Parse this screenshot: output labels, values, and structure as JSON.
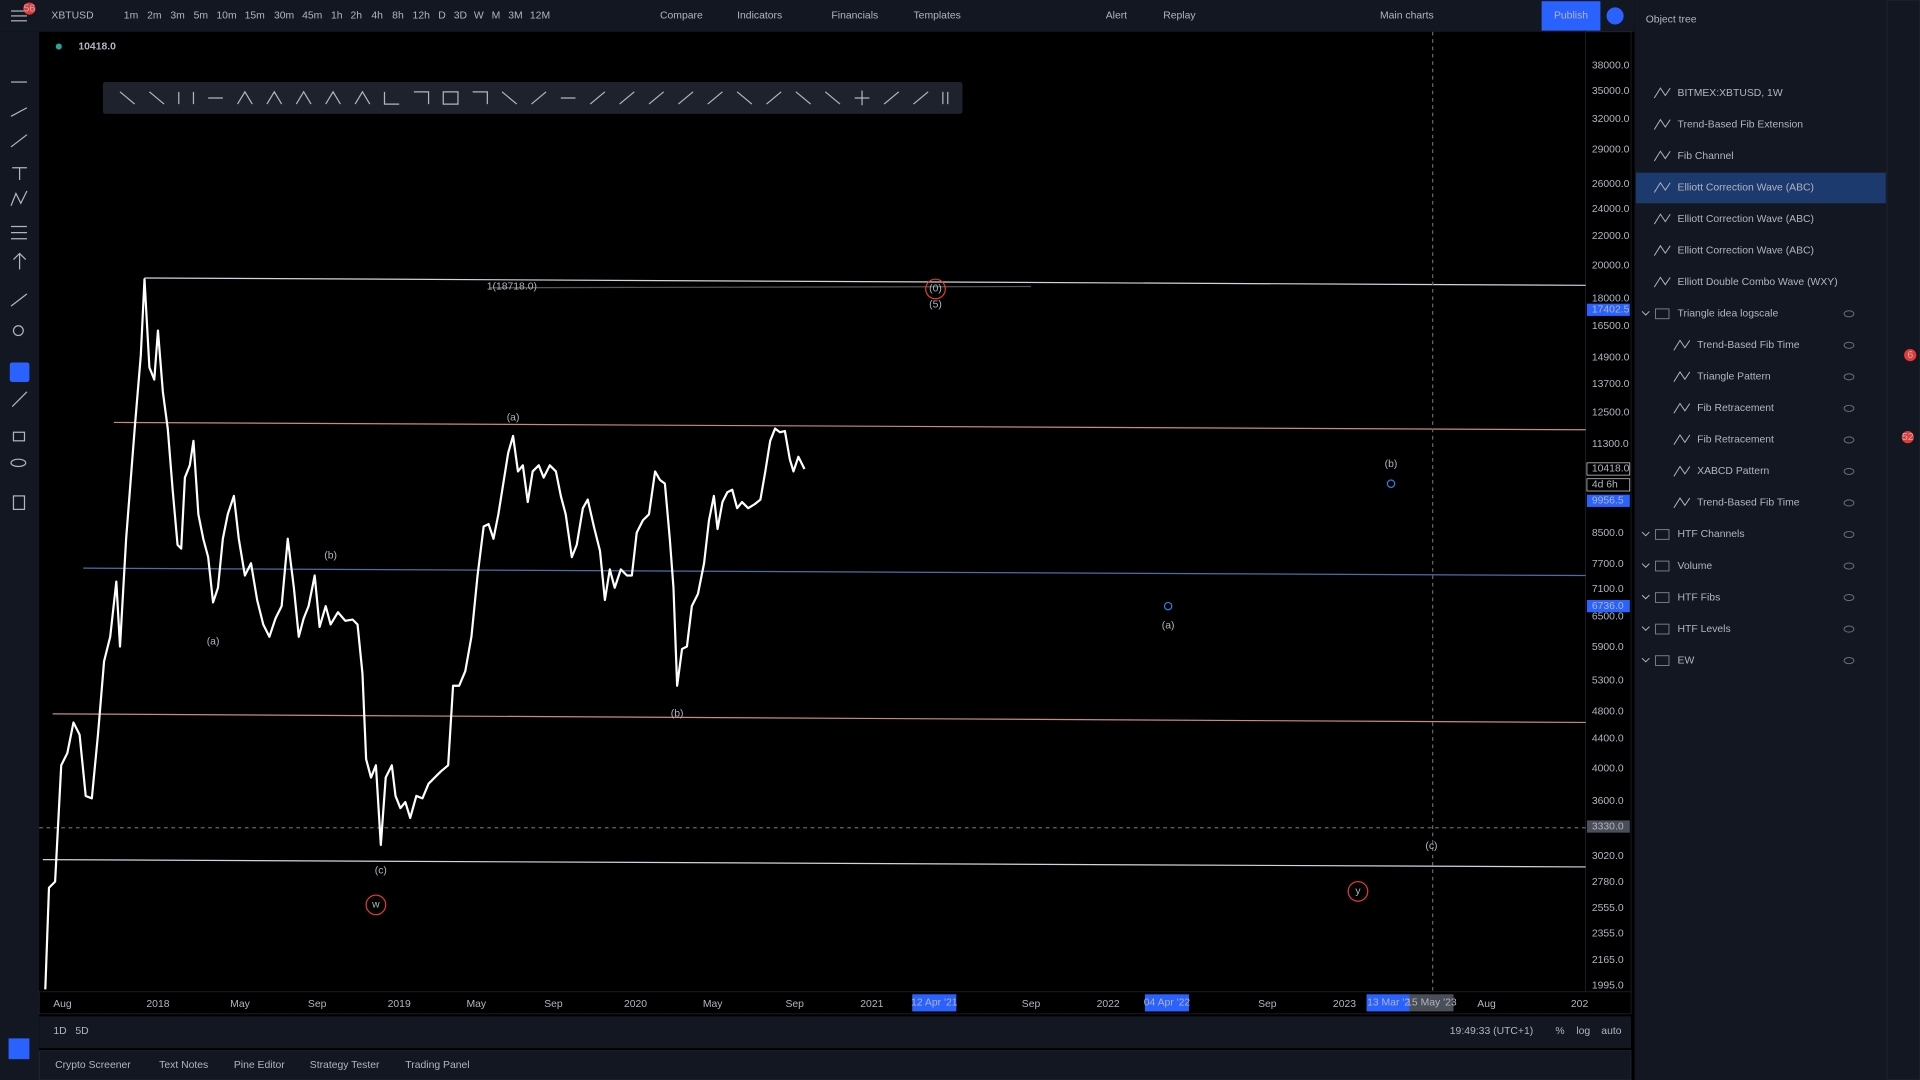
{
  "header": {
    "symbol": "XBTUSD",
    "menu_badge": "56",
    "intervals": [
      "1m",
      "2m",
      "3m",
      "5m",
      "10m",
      "15m",
      "30m",
      "45m",
      "1h",
      "2h",
      "4h",
      "8h",
      "12h",
      "D",
      "3D",
      "W",
      "M",
      "3M",
      "12M"
    ],
    "active_interval": 15,
    "buttons": [
      "Compare",
      "Indicators",
      "Financials",
      "Templates",
      "Alert",
      "Replay"
    ],
    "layout": "Main charts",
    "publish": "Publish"
  },
  "legend": {
    "price": "10418.0"
  },
  "chart": {
    "fib_label": "1(18718.0)",
    "annotations": [
      {
        "text": "(a)",
        "color": "#f2d43a"
      },
      {
        "text": "(b)",
        "color": "#f2d43a"
      },
      {
        "text": "(c)",
        "color": "#f2d43a"
      },
      {
        "text": "w",
        "color": "#e53935"
      },
      {
        "text": "(a)",
        "color": "#66bb6a"
      },
      {
        "text": "(b)",
        "color": "#66bb6a"
      },
      {
        "text": "(0)",
        "color": "#2f7fe0"
      },
      {
        "text": "(5)",
        "color": "#66bb6a"
      },
      {
        "text": "(b)",
        "color": "#2f7fe0"
      },
      {
        "text": "(a)",
        "color": "#2f7fe0"
      },
      {
        "text": "(c)",
        "color": "#2f7fe0"
      },
      {
        "text": "y",
        "color": "#e53935"
      }
    ],
    "price_axis": [
      "38000.0",
      "35000.0",
      "32000.0",
      "29000.0",
      "26000.0",
      "24000.0",
      "22000.0",
      "20000.0",
      "18000.0",
      "16500.0",
      "14900.0",
      "13700.0",
      "12500.0",
      "11300.0",
      "8500.0",
      "7700.0",
      "7100.0",
      "6500.0",
      "5900.0",
      "5300.0",
      "4800.0",
      "4400.0",
      "4000.0",
      "3600.0",
      "3020.0",
      "2780.0",
      "2555.0",
      "2355.0",
      "2165.0",
      "1995.0"
    ],
    "price_badges": [
      {
        "text": "17402.5",
        "color": "#2962ff"
      },
      {
        "text": "10418.0",
        "color": "#ffffff"
      },
      {
        "text": "4d 6h",
        "color": "#ffffff"
      },
      {
        "text": "9956.5",
        "color": "#2962ff"
      },
      {
        "text": "6736.0",
        "color": "#2962ff"
      },
      {
        "text": "3330.0",
        "color": "#4a4e59"
      }
    ],
    "time_axis": [
      "Aug",
      "2018",
      "May",
      "Sep",
      "2019",
      "May",
      "Sep",
      "2020",
      "May",
      "Sep",
      "2021",
      "Sep",
      "2022",
      "Sep",
      "2023",
      "Aug",
      "202"
    ],
    "time_badges": [
      "12 Apr '21",
      "04 Apr '22",
      "13 Mar '2",
      "15 May '23"
    ]
  },
  "object_tree": {
    "title": "Object tree",
    "selected": 3,
    "items": [
      {
        "label": "BITMEX:XBTUSD, 1W"
      },
      {
        "label": "Trend-Based Fib Extension"
      },
      {
        "label": "Fib Channel"
      },
      {
        "label": "Elliott Correction Wave (ABC)"
      },
      {
        "label": "Elliott Correction Wave (ABC)"
      },
      {
        "label": "Elliott Correction Wave (ABC)"
      },
      {
        "label": "Elliott Double Combo Wave (WXY)"
      },
      {
        "label": "Triangle idea logscale",
        "folder": true,
        "hidden": true
      },
      {
        "label": "Trend-Based Fib Time",
        "child": true,
        "hidden": true
      },
      {
        "label": "Triangle Pattern",
        "child": true,
        "hidden": true
      },
      {
        "label": "Fib Retracement",
        "child": true,
        "hidden": true
      },
      {
        "label": "Fib Retracement",
        "child": true,
        "hidden": true
      },
      {
        "label": "XABCD Pattern",
        "child": true,
        "hidden": true
      },
      {
        "label": "Trend-Based Fib Time",
        "child": true,
        "hidden": true
      },
      {
        "label": "HTF Channels",
        "folder": true,
        "hidden": true
      },
      {
        "label": "Volume",
        "folder": true,
        "hidden": true
      },
      {
        "label": "HTF Fibs",
        "folder": true,
        "hidden": true
      },
      {
        "label": "HTF Levels",
        "folder": true,
        "hidden": true
      },
      {
        "label": "EW",
        "folder": true,
        "hidden": true
      }
    ]
  },
  "bottom_bar": {
    "ranges": [
      "1D",
      "5D"
    ],
    "clock": "19:49:33 (UTC+1)",
    "options": [
      "%",
      "log",
      "auto"
    ],
    "active_option": 1
  },
  "tabs": [
    "Crypto Screener",
    "Text Notes",
    "Pine Editor",
    "Strategy Tester",
    "Trading Panel"
  ],
  "side_badges": [
    "6",
    "52"
  ]
}
